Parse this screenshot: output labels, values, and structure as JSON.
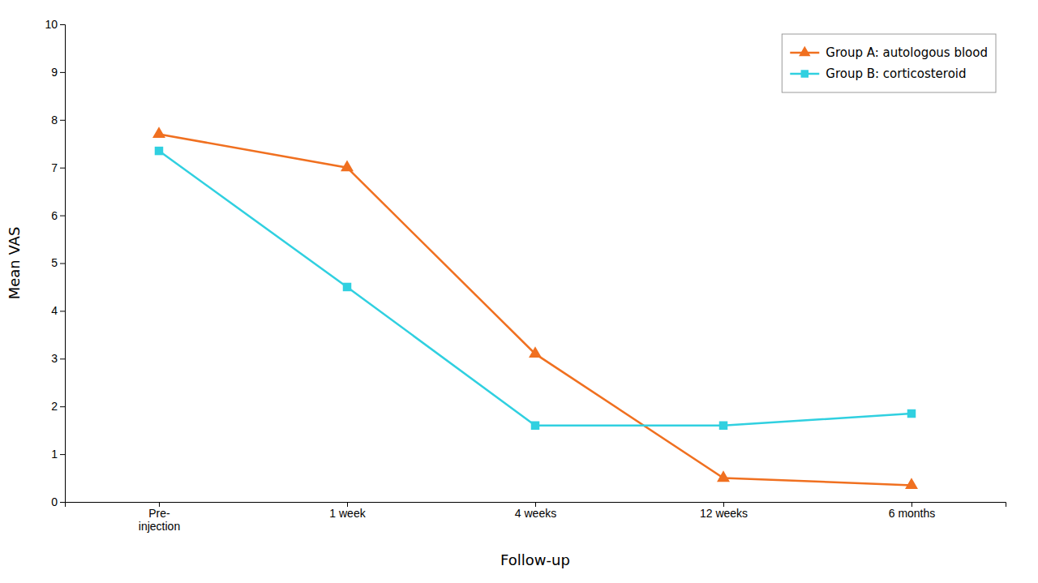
{
  "chart_data": {
    "type": "line",
    "categories": [
      "Pre-\ninjection",
      "1 week",
      "4 weeks",
      "12 weeks",
      "6 months"
    ],
    "series": [
      {
        "name": "Group A: autologous blood",
        "color": "#F07020",
        "marker": "triangle",
        "values": [
          7.7,
          7.0,
          3.1,
          0.5,
          0.35
        ]
      },
      {
        "name": "Group B: corticosteroid",
        "color": "#30D0E0",
        "marker": "square",
        "values": [
          7.35,
          4.5,
          1.6,
          1.6,
          1.85
        ]
      }
    ],
    "xlabel": "Follow-up",
    "ylabel": "Mean VAS",
    "ylim": [
      0,
      10
    ],
    "yticks": [
      0,
      1,
      2,
      3,
      4,
      5,
      6,
      7,
      8,
      9,
      10
    ],
    "legend": "upper right",
    "grid": false
  }
}
